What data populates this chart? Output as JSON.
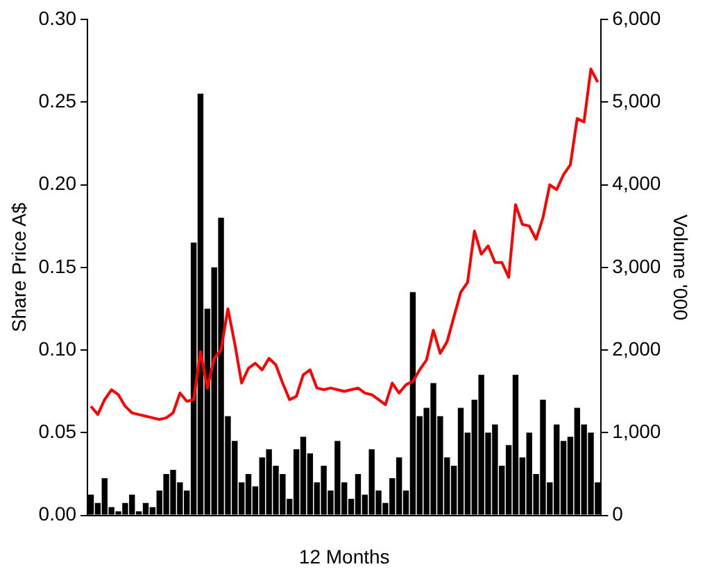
{
  "chart_data": {
    "type": "line",
    "xlabel": "12 Months",
    "ylabel": "Share Price A$",
    "y2label": "Volume '000",
    "categories": [
      null,
      null,
      null,
      null,
      null,
      null,
      null,
      null,
      null,
      null,
      null,
      null,
      null,
      null,
      null,
      null,
      null,
      null,
      null,
      null,
      null,
      null,
      null,
      null,
      null,
      null,
      null,
      null,
      null,
      null,
      null,
      null,
      null,
      null,
      null,
      null,
      null,
      null,
      null,
      null,
      null,
      null,
      null,
      null,
      null,
      null,
      null,
      null,
      null,
      null,
      null,
      null,
      null,
      null,
      null,
      null,
      null,
      null,
      null,
      null,
      null,
      null,
      null,
      null,
      null,
      null,
      null,
      null,
      null,
      null,
      null,
      null,
      null,
      null,
      null
    ],
    "series": [
      {
        "type": "bar",
        "axis": "y2",
        "color": "#000000",
        "values": [
          250,
          150,
          450,
          100,
          50,
          150,
          250,
          50,
          150,
          100,
          300,
          500,
          550,
          400,
          300,
          3300,
          5100,
          2500,
          3000,
          3600,
          1200,
          900,
          400,
          500,
          350,
          700,
          800,
          600,
          500,
          200,
          800,
          950,
          750,
          400,
          600,
          300,
          900,
          400,
          200,
          500,
          250,
          800,
          300,
          150,
          450,
          700,
          300,
          2700,
          1200,
          1300,
          1600,
          1200,
          700,
          600,
          1300,
          1000,
          1400,
          1700,
          1000,
          1100,
          600,
          850,
          1700,
          700,
          1000,
          500,
          1400,
          400,
          1100,
          900,
          950,
          1300,
          1100,
          1000,
          400
        ]
      },
      {
        "color": "#ff0000",
        "values": [
          0.066,
          0.061,
          0.07,
          0.076,
          0.073,
          0.066,
          0.062,
          0.061,
          0.06,
          0.059,
          0.058,
          0.059,
          0.062,
          0.074,
          0.069,
          0.07,
          0.099,
          0.077,
          0.095,
          0.1,
          0.125,
          0.104,
          0.08,
          0.089,
          0.092,
          0.088,
          0.095,
          0.091,
          0.08,
          0.07,
          0.072,
          0.085,
          0.088,
          0.077,
          0.076,
          0.077,
          0.076,
          0.075,
          0.076,
          0.077,
          0.074,
          0.073,
          0.07,
          0.067,
          0.08,
          0.074,
          0.079,
          0.081,
          0.088,
          0.094,
          0.112,
          0.098,
          0.105,
          0.12,
          0.135,
          0.141,
          0.172,
          0.158,
          0.163,
          0.153,
          0.153,
          0.144,
          0.188,
          0.176,
          0.175,
          0.167,
          0.18,
          0.2,
          0.197,
          0.206,
          0.212,
          0.24,
          0.238,
          0.27,
          0.262
        ]
      }
    ],
    "ylim": [
      0,
      0.3
    ],
    "yticks": [
      {
        "value": 0,
        "label": "0.00"
      },
      {
        "value": 0.05,
        "label": "0.05"
      },
      {
        "value": 0.1,
        "label": "0.10"
      },
      {
        "value": 0.15,
        "label": "0.15"
      },
      {
        "value": 0.2,
        "label": "0.20"
      },
      {
        "value": 0.25,
        "label": "0.25"
      },
      {
        "value": 0.3,
        "label": "0.30"
      }
    ],
    "y2lim": [
      0,
      6000
    ],
    "y2ticks": [
      0,
      {
        "value": 1000,
        "label": "1,000"
      },
      {
        "value": 2000,
        "label": "2,000"
      },
      {
        "value": 3000,
        "label": "3,000"
      },
      {
        "value": 4000,
        "label": "4,000"
      },
      {
        "value": 5000,
        "label": "5,000"
      },
      {
        "value": 6000,
        "label": "6,000"
      }
    ],
    "grid": false,
    "legend": false,
    "marker": "none",
    "line_style": "solid"
  }
}
